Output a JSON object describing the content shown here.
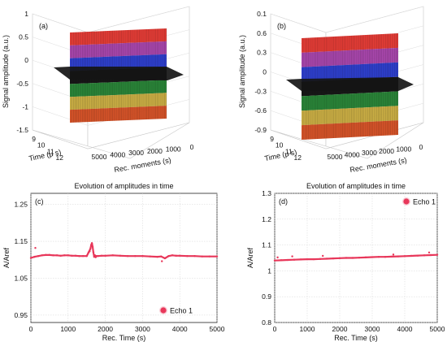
{
  "chart_data": [
    {
      "panel": "(a)",
      "type": "surface",
      "title": "",
      "ylabel": "Signal amplitude (a.u.)",
      "xlabel": "Time (μ s)",
      "zlabel": "Rec. moments (s)",
      "amplitude_ticks": [
        "1",
        "0.5",
        "0",
        "-0.5",
        "-1",
        "-1.5"
      ],
      "time_ticks": [
        "9",
        "10",
        "11",
        "12"
      ],
      "moment_ticks": [
        "5000",
        "4000",
        "3000",
        "2000",
        "1000",
        "0"
      ],
      "ylim": [
        -1.5,
        1
      ],
      "colors": [
        "#e0312b",
        "#a23ca6",
        "#2335c8",
        "#0b0b0b",
        "#1f7d2d",
        "#c6a93a",
        "#d24a1e"
      ]
    },
    {
      "panel": "(b)",
      "type": "surface",
      "title": "",
      "ylabel": "Signal amplitude (a.u.)",
      "xlabel": "Time (μ s)",
      "zlabel": "Rec. moments (s)",
      "amplitude_ticks": [
        "0.1",
        "0.6",
        "0.3",
        "0",
        "-0.3",
        "-0.6",
        "-0.9"
      ],
      "time_ticks": [
        "9",
        "10",
        "11",
        "12"
      ],
      "moment_ticks": [
        "5000",
        "4000",
        "3000",
        "2000",
        "1000",
        "0"
      ],
      "colors": [
        "#e0312b",
        "#a23ca6",
        "#2335c8",
        "#0b0b0b",
        "#1f7d2d",
        "#c6a93a",
        "#d24a1e"
      ]
    },
    {
      "panel": "(c)",
      "type": "scatter",
      "title": "",
      "xlabel": "Rec. Time (s)",
      "ylabel": "A/Aref",
      "xlim": [
        0,
        5000
      ],
      "ylim": [
        0.93,
        1.28
      ],
      "xticks": [
        0,
        1000,
        2000,
        3000,
        4000,
        5000
      ],
      "yticks": [
        0.95,
        1.05,
        1.15,
        1.25
      ],
      "ytick_labels": [
        "0.95",
        "1.05",
        "1.15",
        "1.25"
      ],
      "grid": true,
      "legend_position": "bottom-right",
      "series": [
        {
          "name": "Echo 1",
          "color": "#e8375a",
          "x": [
            0,
            100,
            200,
            300,
            400,
            500,
            600,
            700,
            800,
            900,
            1000,
            1100,
            1200,
            1300,
            1400,
            1500,
            1550,
            1600,
            1620,
            1640,
            1660,
            1680,
            1700,
            1720,
            1740,
            1760,
            1800,
            1900,
            2000,
            2200,
            2400,
            2600,
            2800,
            3000,
            3200,
            3400,
            3500,
            3600,
            3700,
            3800,
            3900,
            4000,
            4200,
            4400,
            4600,
            4800,
            5000
          ],
          "y": [
            1.105,
            1.108,
            1.11,
            1.112,
            1.113,
            1.113,
            1.112,
            1.112,
            1.111,
            1.112,
            1.112,
            1.111,
            1.111,
            1.11,
            1.11,
            1.11,
            1.12,
            1.13,
            1.14,
            1.145,
            1.135,
            1.12,
            1.108,
            1.112,
            1.107,
            1.11,
            1.11,
            1.111,
            1.111,
            1.112,
            1.111,
            1.11,
            1.11,
            1.11,
            1.109,
            1.108,
            1.109,
            1.104,
            1.11,
            1.112,
            1.111,
            1.111,
            1.11,
            1.11,
            1.109,
            1.109,
            1.109
          ],
          "outliers": [
            {
              "x": 120,
              "y": 1.132
            },
            {
              "x": 1580,
              "y": 1.123
            },
            {
              "x": 3520,
              "y": 1.096
            }
          ]
        }
      ]
    },
    {
      "panel": "(d)",
      "type": "scatter",
      "title": "",
      "xlabel": "Rec. Time (s)",
      "ylabel": "A/Aref",
      "xlim": [
        0,
        5000
      ],
      "ylim": [
        0.8,
        1.3
      ],
      "xticks": [
        0,
        1000,
        2000,
        3000,
        4000,
        5000
      ],
      "yticks": [
        0.8,
        0.9,
        1.0,
        1.1,
        1.2,
        1.3
      ],
      "ytick_labels": [
        "0.8",
        "0.9",
        "1",
        "1.1",
        "1.2",
        "1.3"
      ],
      "grid": true,
      "legend_position": "top-right",
      "series": [
        {
          "name": "Echo 1",
          "color": "#e8375a",
          "x": [
            0,
            200,
            400,
            600,
            800,
            1000,
            1200,
            1400,
            1600,
            1800,
            2000,
            2200,
            2400,
            2600,
            2800,
            3000,
            3200,
            3400,
            3600,
            3800,
            4000,
            4200,
            4400,
            4600,
            4800,
            5000
          ],
          "y": [
            1.04,
            1.041,
            1.042,
            1.043,
            1.044,
            1.045,
            1.045,
            1.046,
            1.047,
            1.048,
            1.049,
            1.05,
            1.05,
            1.051,
            1.052,
            1.053,
            1.054,
            1.054,
            1.055,
            1.056,
            1.057,
            1.058,
            1.059,
            1.06,
            1.061,
            1.062
          ],
          "outliers": [
            {
              "x": 90,
              "y": 1.052
            },
            {
              "x": 540,
              "y": 1.056
            },
            {
              "x": 1480,
              "y": 1.058
            },
            {
              "x": 3650,
              "y": 1.063
            },
            {
              "x": 4750,
              "y": 1.071
            }
          ]
        }
      ]
    }
  ],
  "titles": {
    "c": "Evolution of amplitudes in time",
    "d": "Evolution of amplitudes in time"
  }
}
